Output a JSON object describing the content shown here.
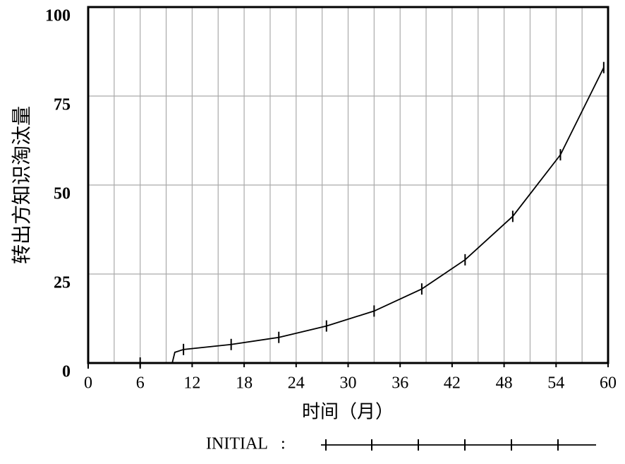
{
  "chart_data": {
    "type": "line",
    "xlabel": "时间（月）",
    "ylabel": "转出方知识淘汰量",
    "x": [
      0,
      6,
      9.7,
      10,
      11,
      16.5,
      22,
      27.5,
      33,
      38.5,
      43.5,
      49,
      54.5,
      59.5
    ],
    "series": [
      {
        "name": "INITIAL",
        "color": "#000000",
        "values": [
          0,
          0,
          0,
          3,
          3.8,
          5.2,
          7.2,
          10.4,
          14.6,
          20.8,
          29,
          41.2,
          58.5,
          83
        ]
      }
    ],
    "xlim": [
      0,
      60
    ],
    "xticks": [
      0,
      6,
      12,
      18,
      24,
      30,
      36,
      42,
      48,
      54,
      60
    ],
    "ylim": [
      0,
      100
    ],
    "yticks": [
      0,
      25,
      50,
      75,
      100
    ],
    "grid": true,
    "legend": "bottom"
  }
}
